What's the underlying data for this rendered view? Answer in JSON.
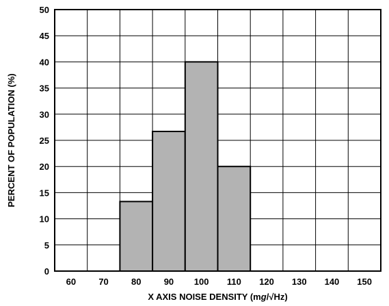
{
  "chart_data": {
    "type": "bar",
    "title": "",
    "xlabel": "X AXIS NOISE DENSITY (mg/√Hz)",
    "ylabel": "PERCENT OF POPULATION (%)",
    "x_ticks": [
      "60",
      "70",
      "80",
      "90",
      "100",
      "110",
      "120",
      "130",
      "140",
      "150"
    ],
    "y_ticks": [
      "0",
      "5",
      "10",
      "15",
      "20",
      "25",
      "30",
      "35",
      "40",
      "45",
      "50"
    ],
    "xlim": [
      55,
      155
    ],
    "ylim": [
      0,
      50
    ],
    "bin_width": 10,
    "categories": [
      "80",
      "90",
      "100",
      "110"
    ],
    "values": [
      13.3,
      26.7,
      40,
      20
    ],
    "grid": true,
    "bar_color": "#b3b3b3",
    "edge_color": "#000000"
  }
}
